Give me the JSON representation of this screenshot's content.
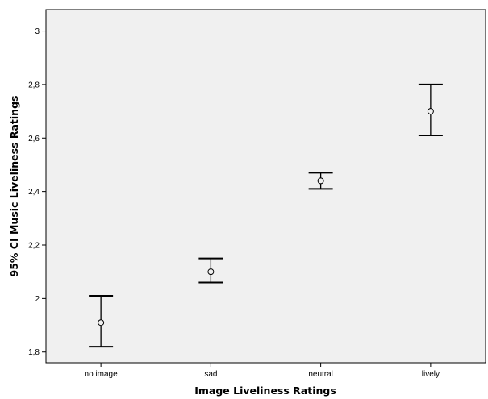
{
  "chart_data": {
    "type": "errorbar",
    "xlabel": "Image Liveliness Ratings",
    "ylabel": "95% CI Music Liveliness Ratings",
    "ylim": [
      1.76,
      3.08
    ],
    "yticks": [
      1.8,
      2.0,
      2.2,
      2.4,
      2.6,
      2.8,
      3.0
    ],
    "ytick_labels": [
      "1,8",
      "2",
      "2,2",
      "2,4",
      "2,6",
      "2,8",
      "3"
    ],
    "grid": false,
    "background": "#f0f0f0",
    "marker_color": "#000000",
    "categories": [
      "no image",
      "sad",
      "neutral",
      "lively"
    ],
    "points": [
      {
        "category": "no image",
        "mean": 1.91,
        "ci_lower": 1.82,
        "ci_upper": 2.01
      },
      {
        "category": "sad",
        "mean": 2.1,
        "ci_lower": 2.06,
        "ci_upper": 2.15
      },
      {
        "category": "neutral",
        "mean": 2.44,
        "ci_lower": 2.41,
        "ci_upper": 2.47
      },
      {
        "category": "lively",
        "mean": 2.7,
        "ci_lower": 2.61,
        "ci_upper": 2.8
      }
    ]
  }
}
